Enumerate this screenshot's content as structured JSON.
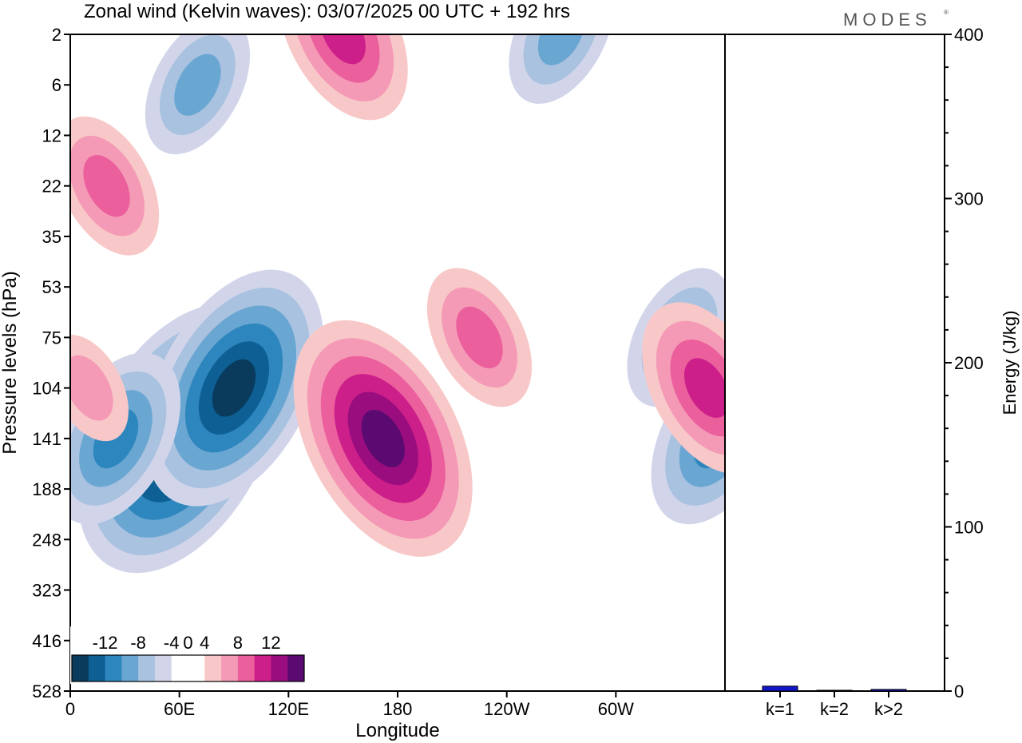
{
  "title": "Zonal wind (Kelvin waves):  03/07/2025  00 UTC  + 192 hrs",
  "brand": "MODES",
  "brand_mark": "®",
  "colors": {
    "negative": [
      "#0a3a5c",
      "#0d5f94",
      "#2d86bd",
      "#6aa6d2",
      "#a9c2e0",
      "#d2d5ea"
    ],
    "neutral": "#ffffff",
    "positive": [
      "#f8c8c8",
      "#f59ab6",
      "#ea5f9c",
      "#cc1f8a",
      "#9a0d7e",
      "#5a0a70"
    ],
    "energy_bar": "#1515c8"
  },
  "chart_data": [
    {
      "type": "heatmap",
      "title": "Zonal wind (Kelvin waves):  03/07/2025  00 UTC  + 192 hrs",
      "xlabel": "Longitude",
      "ylabel": "Pressure levels (hPa)",
      "x_ticks": [
        "0",
        "60E",
        "120E",
        "180",
        "120W",
        "60W"
      ],
      "x_tick_values": [
        0,
        60,
        120,
        180,
        240,
        300
      ],
      "xlim": [
        0,
        360
      ],
      "y_ticks": [
        "2",
        "6",
        "12",
        "22",
        "35",
        "53",
        "75",
        "104",
        "141",
        "188",
        "248",
        "323",
        "416",
        "528"
      ],
      "y_scale": "pressure levels, evenly spaced as labeled",
      "colorbar": {
        "labels": [
          "-12",
          "-8",
          "-4",
          "0",
          "4",
          "8",
          "12"
        ],
        "levels": [
          -14,
          -12,
          -10,
          -8,
          -6,
          -4,
          -2,
          2,
          4,
          6,
          8,
          10,
          12,
          14
        ],
        "placement": "bottom-left"
      },
      "features": [
        {
          "sign": "negative",
          "center_lon": 60,
          "center_hpa": 141,
          "peak": -14
        },
        {
          "sign": "negative",
          "center_lon": 90,
          "center_hpa": 104,
          "peak": -12
        },
        {
          "sign": "negative",
          "center_lon": 25,
          "center_hpa": 141,
          "peak": -8
        },
        {
          "sign": "negative",
          "center_lon": 355,
          "center_hpa": 141,
          "peak": -8
        },
        {
          "sign": "negative",
          "center_lon": 335,
          "center_hpa": 75,
          "peak": -6
        },
        {
          "sign": "negative",
          "center_lon": 270,
          "center_hpa": 2,
          "peak": -6
        },
        {
          "sign": "negative",
          "center_lon": 70,
          "center_hpa": 6,
          "peak": -6
        },
        {
          "sign": "positive",
          "center_lon": 172,
          "center_hpa": 141,
          "peak": 12
        },
        {
          "sign": "positive",
          "center_lon": 225,
          "center_hpa": 75,
          "peak": 6
        },
        {
          "sign": "positive",
          "center_lon": 350,
          "center_hpa": 104,
          "peak": 8
        },
        {
          "sign": "positive",
          "center_lon": 150,
          "center_hpa": 2,
          "peak": 8
        },
        {
          "sign": "positive",
          "center_lon": 20,
          "center_hpa": 22,
          "peak": 6
        },
        {
          "sign": "positive",
          "center_lon": 10,
          "center_hpa": 104,
          "peak": 4
        }
      ]
    },
    {
      "type": "bar",
      "categories": [
        "k=1",
        "k=2",
        "k>2"
      ],
      "values": [
        3,
        0.5,
        1
      ],
      "ylabel": "Energy (J/kg)",
      "y_ticks": [
        "0",
        "100",
        "200",
        "300",
        "400"
      ],
      "ylim": [
        0,
        400
      ],
      "grid": false
    }
  ]
}
